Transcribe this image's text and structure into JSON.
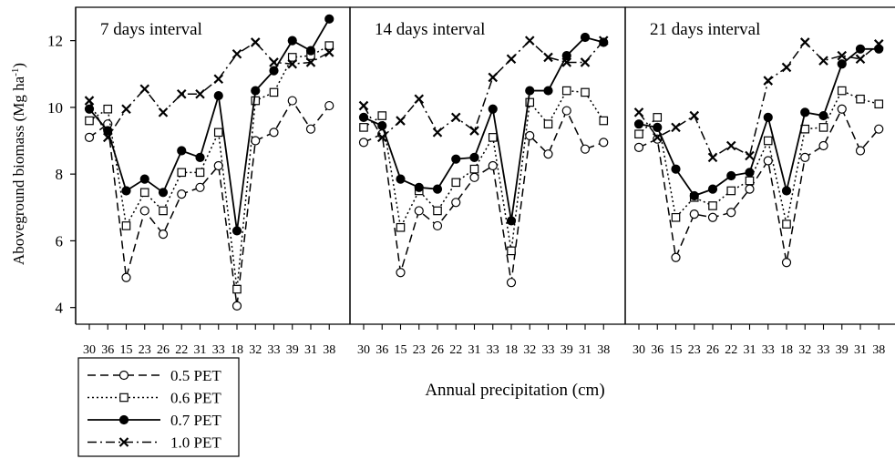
{
  "figure": {
    "ylabel": "Aboveground biomass (Mg ha",
    "ylabel_sup": "-1",
    "ylabel_close": ")",
    "xlabel": "Annual precipitation (cm)"
  },
  "chart_data": {
    "type": "line",
    "ylim": [
      3.5,
      13
    ],
    "yticks": [
      4,
      6,
      8,
      10,
      12
    ],
    "grid": false,
    "legend_placement": "bottom-left",
    "categories": [
      "30",
      "36",
      "15",
      "23",
      "26",
      "22",
      "31",
      "33",
      "18",
      "32",
      "33",
      "39",
      "31",
      "38"
    ],
    "styles": [
      {
        "dash": "9,5",
        "marker": "circle",
        "fill": "#ffffff",
        "color": "#000000"
      },
      {
        "dash": "2,3",
        "marker": "square",
        "fill": "#ffffff",
        "color": "#000000"
      },
      {
        "dash": "",
        "marker": "circle",
        "fill": "#000000",
        "color": "#000000"
      },
      {
        "dash": "10,4,2,4",
        "marker": "x",
        "fill": "none",
        "color": "#000000"
      }
    ],
    "legend": [
      "0.5 PET",
      "0.6 PET",
      "0.7 PET",
      "1.0 PET"
    ],
    "panels": [
      {
        "title": "7 days interval",
        "series": [
          {
            "name": "0.5 PET",
            "values": [
              9.1,
              9.5,
              4.9,
              6.9,
              6.2,
              7.4,
              7.6,
              8.25,
              4.05,
              9.0,
              9.25,
              10.2,
              9.35,
              10.05
            ]
          },
          {
            "name": "0.6 PET",
            "values": [
              9.6,
              9.95,
              6.45,
              7.45,
              6.9,
              8.05,
              8.05,
              9.25,
              4.55,
              10.2,
              10.45,
              11.5,
              11.55,
              11.85
            ]
          },
          {
            "name": "0.7 PET",
            "values": [
              9.95,
              9.3,
              7.5,
              7.85,
              7.45,
              8.7,
              8.5,
              10.35,
              6.3,
              10.5,
              11.1,
              12.0,
              11.7,
              12.65
            ]
          },
          {
            "name": "1.0 PET",
            "values": [
              10.2,
              9.1,
              9.95,
              10.55,
              9.85,
              10.4,
              10.4,
              10.85,
              11.6,
              11.95,
              11.35,
              11.3,
              11.35,
              11.65
            ]
          }
        ]
      },
      {
        "title": "14 days interval",
        "series": [
          {
            "name": "0.5 PET",
            "values": [
              8.95,
              9.2,
              5.05,
              6.9,
              6.45,
              7.15,
              7.9,
              8.25,
              4.75,
              9.15,
              8.6,
              9.9,
              8.75,
              8.95
            ]
          },
          {
            "name": "0.6 PET",
            "values": [
              9.4,
              9.75,
              6.4,
              7.5,
              6.9,
              7.75,
              8.15,
              9.1,
              5.7,
              10.15,
              9.5,
              10.5,
              10.45,
              9.6
            ]
          },
          {
            "name": "0.7 PET",
            "values": [
              9.7,
              9.45,
              7.85,
              7.6,
              7.55,
              8.45,
              8.5,
              9.95,
              6.6,
              10.5,
              10.5,
              11.55,
              12.1,
              11.95
            ]
          },
          {
            "name": "1.0 PET",
            "values": [
              10.05,
              9.1,
              9.6,
              10.25,
              9.25,
              9.7,
              9.3,
              10.9,
              11.45,
              12.0,
              11.5,
              11.35,
              11.35,
              12.0
            ]
          }
        ]
      },
      {
        "title": "21 days interval",
        "series": [
          {
            "name": "0.5 PET",
            "values": [
              8.8,
              9.05,
              5.5,
              6.8,
              6.7,
              6.85,
              7.55,
              8.4,
              5.35,
              8.5,
              8.85,
              9.95,
              8.7,
              9.35
            ]
          },
          {
            "name": "0.6 PET",
            "values": [
              9.2,
              9.7,
              6.7,
              7.3,
              7.05,
              7.5,
              7.8,
              9.0,
              6.5,
              9.35,
              9.4,
              10.5,
              10.25,
              10.1
            ]
          },
          {
            "name": "0.7 PET",
            "values": [
              9.5,
              9.4,
              8.15,
              7.35,
              7.55,
              7.95,
              8.05,
              9.7,
              7.5,
              9.85,
              9.75,
              11.3,
              11.75,
              11.75
            ]
          },
          {
            "name": "1.0 PET",
            "values": [
              9.85,
              9.1,
              9.4,
              9.75,
              8.5,
              8.85,
              8.55,
              10.8,
              11.2,
              11.95,
              11.4,
              11.55,
              11.45,
              11.9
            ]
          }
        ]
      }
    ]
  }
}
